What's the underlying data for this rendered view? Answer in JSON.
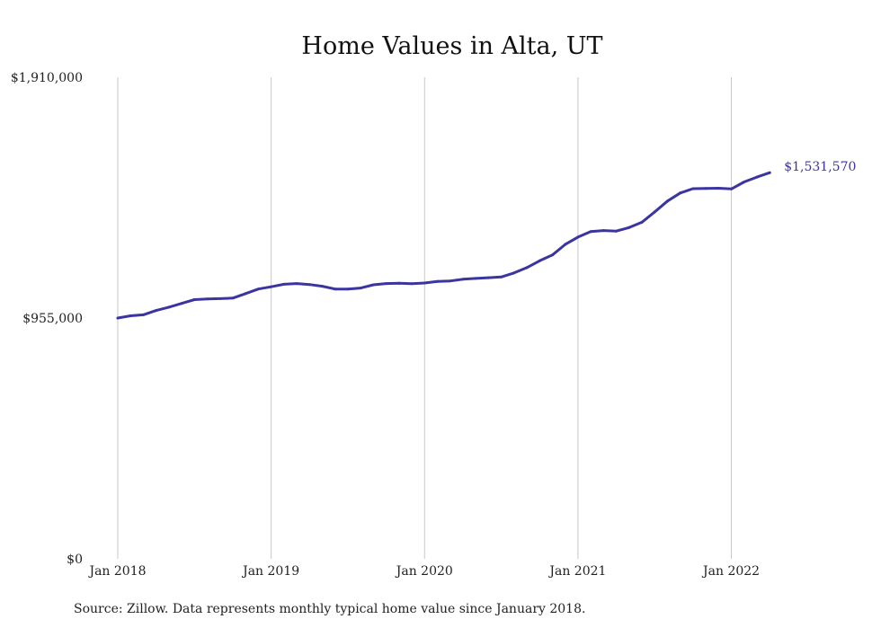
{
  "chart_data": {
    "type": "line",
    "title": "Home Values in Alta, UT",
    "xlabel": "",
    "ylabel": "",
    "ylim": [
      0,
      1910000
    ],
    "yticks": [
      {
        "value": 0,
        "label": "$0"
      },
      {
        "value": 955000,
        "label": "$955,000"
      },
      {
        "value": 1910000,
        "label": "$1,910,000"
      }
    ],
    "xticks": [
      {
        "index": 0,
        "label": "Jan 2018"
      },
      {
        "index": 12,
        "label": "Jan 2019"
      },
      {
        "index": 24,
        "label": "Jan 2020"
      },
      {
        "index": 36,
        "label": "Jan 2021"
      },
      {
        "index": 48,
        "label": "Jan 2022"
      }
    ],
    "grid": "vertical",
    "x_start": "2018-01",
    "series": [
      {
        "values": [
          955000,
          964000,
          968000,
          985000,
          998000,
          1013000,
          1028000,
          1031000,
          1032000,
          1034000,
          1052000,
          1070000,
          1079000,
          1089000,
          1092000,
          1088000,
          1081000,
          1070000,
          1070000,
          1074000,
          1087000,
          1092000,
          1093000,
          1091000,
          1094000,
          1100000,
          1102000,
          1109000,
          1112000,
          1115000,
          1118000,
          1134000,
          1155000,
          1182000,
          1205000,
          1247000,
          1276000,
          1298000,
          1302000,
          1300000,
          1314000,
          1335000,
          1376000,
          1419000,
          1451000,
          1468000,
          1469000,
          1470000,
          1467000,
          1495000,
          1514000,
          1531570
        ],
        "end_label": "$1,531,570"
      }
    ],
    "source": "Source: Zillow. Data represents monthly typical home value since January 2018."
  }
}
